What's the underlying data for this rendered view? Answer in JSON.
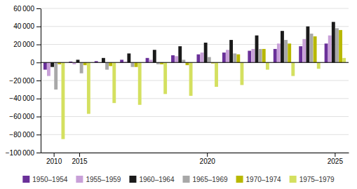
{
  "chart_data": {
    "type": "bar",
    "categories": [
      "2010",
      "2015",
      null,
      null,
      null,
      null,
      "2020",
      null,
      null,
      null,
      null,
      "2025"
    ],
    "series": [
      {
        "name": "1950–1954",
        "color": "#6a3099",
        "values": [
          -8000,
          1000,
          1500,
          3000,
          5000,
          8000,
          9000,
          11000,
          13000,
          15000,
          18000,
          21000
        ]
      },
      {
        "name": "1955–1959",
        "color": "#c8a0d8",
        "values": [
          -15000,
          -2000,
          -500,
          1000,
          3000,
          7000,
          11000,
          14000,
          15000,
          21000,
          26000,
          30000
        ]
      },
      {
        "name": "1960–1964",
        "color": "#1a1a1a",
        "values": [
          -5000,
          3000,
          5000,
          10000,
          14000,
          18000,
          22000,
          25000,
          30000,
          35000,
          40000,
          45000
        ]
      },
      {
        "name": "1965–1969",
        "color": "#a8a8a8",
        "values": [
          -30000,
          -12000,
          -8000,
          -5000,
          -2000,
          3000,
          6000,
          10000,
          15000,
          25000,
          32000,
          38000
        ]
      },
      {
        "name": "1970–1974",
        "color": "#b8b800",
        "values": [
          -2000,
          -3000,
          -4000,
          -5000,
          -2000,
          -3000,
          -1000,
          9000,
          15000,
          21000,
          29000,
          36000
        ]
      },
      {
        "name": "1975–1979",
        "color": "#d4e060",
        "values": [
          -85000,
          -57000,
          -45000,
          -47000,
          -35000,
          -37000,
          -27000,
          -25000,
          -8000,
          -15000,
          -7000,
          5000
        ]
      }
    ],
    "ylim": [
      -100000,
      60000
    ],
    "yticks": [
      {
        "value": -100000,
        "label": "−100 000"
      },
      {
        "value": -80000,
        "label": "−80 000"
      },
      {
        "value": -60000,
        "label": "−60 000"
      },
      {
        "value": -40000,
        "label": "−40 000"
      },
      {
        "value": -20000,
        "label": "−20 000"
      },
      0,
      {
        "value": 20000,
        "label": "20 000"
      },
      {
        "value": 40000,
        "label": "40 000"
      },
      {
        "value": 60000,
        "label": "60 000"
      }
    ],
    "grid": true,
    "legend": "bottom"
  }
}
